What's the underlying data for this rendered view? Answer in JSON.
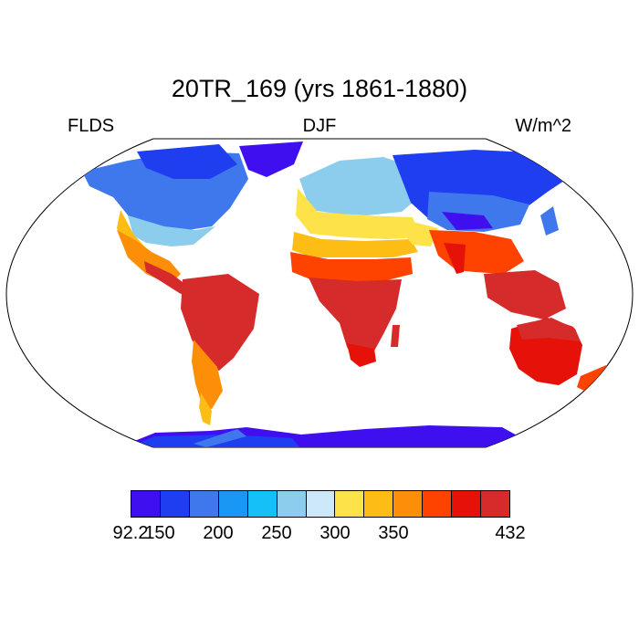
{
  "title": "20TR_169 (yrs 1861-1880)",
  "subtitle_left": "FLDS",
  "subtitle_center": "DJF",
  "subtitle_right": "W/m^2",
  "colorbar": {
    "colors": [
      "#3f0ff0",
      "#1e3ef0",
      "#3f78ec",
      "#1a96f5",
      "#14c0f7",
      "#8ccdee",
      "#cde8f8",
      "#fde24a",
      "#fdbd15",
      "#fd8f08",
      "#fe4301",
      "#e6120a",
      "#d52b2b"
    ],
    "labels": [
      "92.2",
      "150",
      "200",
      "250",
      "300",
      "350",
      "432"
    ]
  },
  "regions": [
    {
      "name": "Greenland",
      "color": "#3f0ff0"
    },
    {
      "name": "North America",
      "color": "#3f78ec"
    },
    {
      "name": "South America",
      "color": "#d52b2b"
    },
    {
      "name": "Europe",
      "color": "#8ccdee"
    },
    {
      "name": "Africa",
      "color": "#d52b2b"
    },
    {
      "name": "Asia",
      "color": "#1e3ef0"
    },
    {
      "name": "Australia",
      "color": "#e6120a"
    },
    {
      "name": "Antarctica",
      "color": "#3f0ff0"
    }
  ]
}
